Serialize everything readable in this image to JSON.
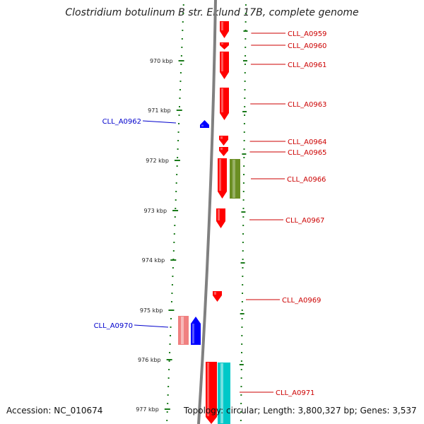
{
  "title": "Clostridium botulinum B str. Eklund 17B, complete genome",
  "footer": {
    "accession": "Accession: NC_010674",
    "topology": "Topology: circular; Length: 3,800,327 bp; Genes: 3,537"
  },
  "colors": {
    "backbone": "#808080",
    "tick": "#1a7a1a",
    "gene_plus": "#ff0000",
    "gene_minus": "#0000ff",
    "label_plus": "#cc0000",
    "label_minus": "#0000cc",
    "feature_olive": "#6b8e23",
    "feature_cyan": "#00c8c8",
    "feature_pink": "#f08080"
  },
  "scale": {
    "unit": "kbp",
    "ticks": [
      "970 kbp",
      "971 kbp",
      "972 kbp",
      "973 kbp",
      "974 kbp",
      "975 kbp",
      "976 kbp",
      "977 kbp"
    ]
  },
  "genes": [
    {
      "name": "CLL_A0959",
      "strand": "+"
    },
    {
      "name": "CLL_A0960",
      "strand": "+"
    },
    {
      "name": "CLL_A0961",
      "strand": "+"
    },
    {
      "name": "CLL_A0962",
      "strand": "-"
    },
    {
      "name": "CLL_A0963",
      "strand": "+"
    },
    {
      "name": "CLL_A0964",
      "strand": "+"
    },
    {
      "name": "CLL_A0965",
      "strand": "+"
    },
    {
      "name": "CLL_A0966",
      "strand": "+"
    },
    {
      "name": "CLL_A0967",
      "strand": "+"
    },
    {
      "name": "CLL_A0969",
      "strand": "+"
    },
    {
      "name": "CLL_A0970",
      "strand": "-"
    },
    {
      "name": "CLL_A0971",
      "strand": "+"
    }
  ]
}
